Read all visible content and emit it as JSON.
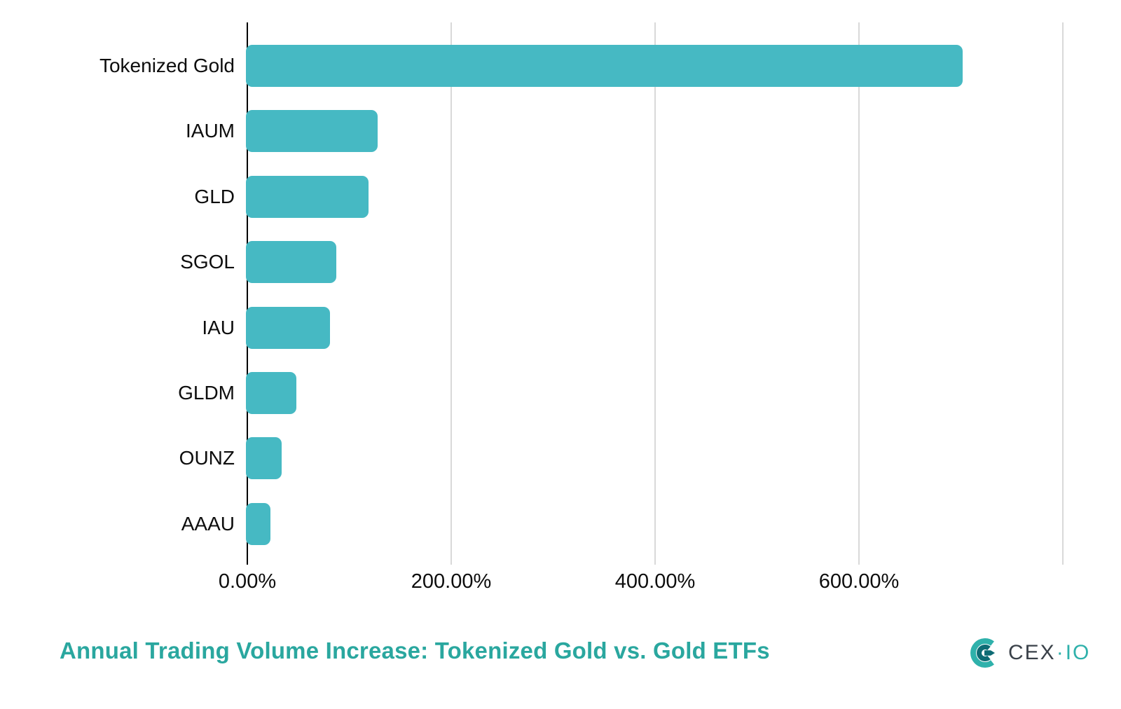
{
  "chart_data": {
    "type": "bar",
    "orientation": "horizontal",
    "title": "Annual Trading Volume Increase: Tokenized Gold vs. Gold ETFs",
    "categories": [
      "Tokenized Gold",
      "IAUM",
      "GLD",
      "SGOL",
      "IAU",
      "GLDM",
      "OUNZ",
      "AAAU"
    ],
    "values": [
      702,
      128,
      119,
      87,
      81,
      48,
      34,
      23
    ],
    "value_unit": "%",
    "xlabel": "",
    "ylabel": "",
    "xlim": [
      0,
      800
    ],
    "xticks": [
      {
        "value": 0,
        "label": "0.00%"
      },
      {
        "value": 200,
        "label": "200.00%"
      },
      {
        "value": 400,
        "label": "400.00%"
      },
      {
        "value": 600,
        "label": "600.00%"
      }
    ],
    "gridline_values": [
      200,
      400,
      600,
      800
    ],
    "grid": true,
    "legend_position": "none"
  },
  "brand": {
    "primary": "CEX",
    "separator": "·",
    "secondary": "IO"
  },
  "colors": {
    "bar": "#46b9c3",
    "title": "#2aa79f",
    "gridline": "#d9d9d9",
    "axis": "#000000",
    "label_text": "#0d0d0d",
    "brand_text": "#3a4149",
    "brand_accent": "#2fb1ab",
    "brand_inner": "#0e6b74"
  }
}
